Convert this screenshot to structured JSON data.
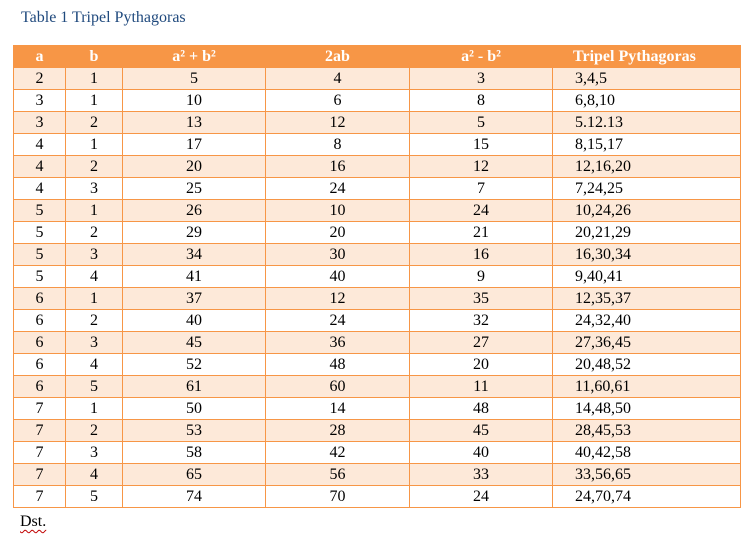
{
  "caption": "Table 1 Tripel Pythagoras",
  "columns": [
    "a",
    "b",
    "a² + b²",
    "2ab",
    "a² - b²",
    "Tripel Pythagoras"
  ],
  "rows": [
    [
      "2",
      "1",
      "5",
      "4",
      "3",
      "3,4,5"
    ],
    [
      "3",
      "1",
      "10",
      "6",
      "8",
      "6,8,10"
    ],
    [
      "3",
      "2",
      "13",
      "12",
      "5",
      "5.12.13"
    ],
    [
      "4",
      "1",
      "17",
      "8",
      "15",
      "8,15,17"
    ],
    [
      "4",
      "2",
      "20",
      "16",
      "12",
      "12,16,20"
    ],
    [
      "4",
      "3",
      "25",
      "24",
      "7",
      "7,24,25"
    ],
    [
      "5",
      "1",
      "26",
      "10",
      "24",
      "10,24,26"
    ],
    [
      "5",
      "2",
      "29",
      "20",
      "21",
      "20,21,29"
    ],
    [
      "5",
      "3",
      "34",
      "30",
      "16",
      "16,30,34"
    ],
    [
      "5",
      "4",
      "41",
      "40",
      "9",
      "9,40,41"
    ],
    [
      "6",
      "1",
      "37",
      "12",
      "35",
      "12,35,37"
    ],
    [
      "6",
      "2",
      "40",
      "24",
      "32",
      "24,32,40"
    ],
    [
      "6",
      "3",
      "45",
      "36",
      "27",
      "27,36,45"
    ],
    [
      "6",
      "4",
      "52",
      "48",
      "20",
      "20,48,52"
    ],
    [
      "6",
      "5",
      "61",
      "60",
      "11",
      "11,60,61"
    ],
    [
      "7",
      "1",
      "50",
      "14",
      "48",
      "14,48,50"
    ],
    [
      "7",
      "2",
      "53",
      "28",
      "45",
      "28,45,53"
    ],
    [
      "7",
      "3",
      "58",
      "42",
      "40",
      "40,42,58"
    ],
    [
      "7",
      "4",
      "65",
      "56",
      "33",
      "33,56,65"
    ],
    [
      "7",
      "5",
      "74",
      "70",
      "24",
      "24,70,74"
    ]
  ],
  "note": "Dst.",
  "colors": {
    "header": "#f79646",
    "band": "#fde9d9",
    "caption": "#1f497d"
  }
}
